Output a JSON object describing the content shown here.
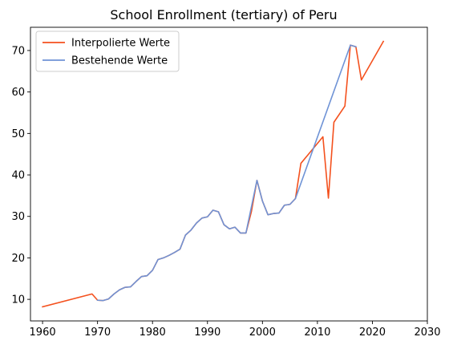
{
  "chart_data": {
    "type": "line",
    "title": "School Enrollment (tertiary) of Peru",
    "xlabel": "",
    "ylabel": "",
    "xlim": [
      1957.8,
      2030
    ],
    "ylim": [
      4.8,
      75.6
    ],
    "x_ticks": [
      1960,
      1970,
      1980,
      1990,
      2000,
      2010,
      2020,
      2030
    ],
    "y_ticks": [
      10,
      20,
      30,
      40,
      50,
      60,
      70
    ],
    "grid": false,
    "legend_position": "top-left",
    "series": [
      {
        "name": "Interpolierte Werte",
        "color": "#f4511e",
        "x": [
          1960,
          1969,
          1970,
          1971,
          1972,
          1973,
          1974,
          1975,
          1976,
          1977,
          1978,
          1979,
          1980,
          1981,
          1982,
          1983,
          1984,
          1985,
          1986,
          1987,
          1988,
          1989,
          1990,
          1991,
          1992,
          1993,
          1994,
          1995,
          1996,
          1997,
          1998,
          1999,
          2000,
          2001,
          2002,
          2003,
          2004,
          2005,
          2006,
          2007,
          2011,
          2012,
          2013,
          2015,
          2016,
          2017,
          2018,
          2022
        ],
        "values": [
          8.2,
          11.3,
          9.8,
          9.7,
          10.1,
          11.3,
          12.3,
          12.9,
          13.0,
          14.3,
          15.5,
          15.7,
          17.0,
          19.6,
          20.0,
          20.6,
          21.3,
          22.1,
          25.5,
          26.7,
          28.4,
          29.6,
          29.9,
          31.5,
          31.1,
          28.0,
          27.0,
          27.4,
          26.0,
          26.0,
          31.2,
          38.7,
          33.7,
          30.4,
          30.7,
          30.8,
          32.7,
          32.9,
          34.3,
          42.8,
          49.2,
          34.4,
          52.7,
          56.6,
          71.3,
          70.9,
          62.9,
          72.2
        ]
      },
      {
        "name": "Bestehende Werte",
        "color": "#6f93d6",
        "x": [
          1970,
          1971,
          1972,
          1973,
          1974,
          1975,
          1976,
          1977,
          1978,
          1979,
          1980,
          1981,
          1982,
          1983,
          1984,
          1985,
          1986,
          1987,
          1988,
          1989,
          1990,
          1991,
          1992,
          1993,
          1994,
          1995,
          1996,
          1997,
          1999,
          2000,
          2001,
          2002,
          2003,
          2004,
          2005,
          2006,
          2016,
          2017
        ],
        "values": [
          9.8,
          9.7,
          10.1,
          11.3,
          12.3,
          12.9,
          13.0,
          14.3,
          15.5,
          15.7,
          17.0,
          19.6,
          20.0,
          20.6,
          21.3,
          22.1,
          25.5,
          26.7,
          28.4,
          29.6,
          29.9,
          31.5,
          31.1,
          28.0,
          27.0,
          27.4,
          26.0,
          26.0,
          38.7,
          33.7,
          30.4,
          30.7,
          30.8,
          32.7,
          32.9,
          34.3,
          71.3,
          70.9
        ]
      }
    ]
  }
}
